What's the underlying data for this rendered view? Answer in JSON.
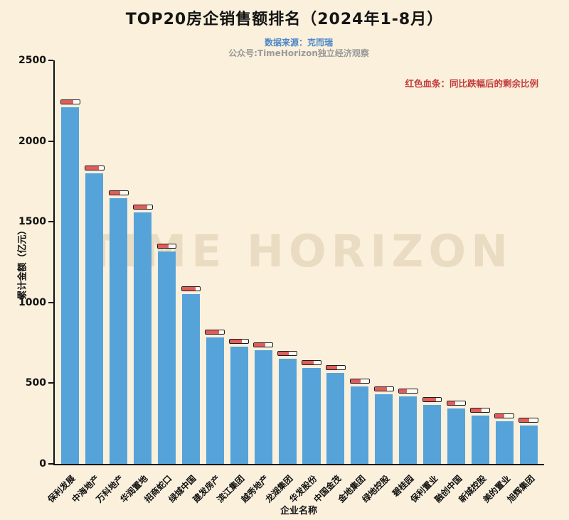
{
  "header": {
    "title": "TOP20房企销售额排名（2024年1-8月）",
    "source_line": "数据来源：克而瑞",
    "account_line": "公众号:TimeHorizon独立经济观察",
    "legend_note": "红色血条：同比跌幅后的剩余比例"
  },
  "watermark": "TIME HORIZON",
  "colors": {
    "background": "#faf0dc",
    "bar": "#55a3d9",
    "marker_red": "#e25c5c",
    "source_blue": "#4a86c8",
    "note_red": "#c23a3a"
  },
  "chart_data": {
    "type": "bar",
    "title": "TOP20房企销售额排名（2024年1-8月）",
    "xlabel": "企业名称",
    "ylabel": "累计金额（亿元）",
    "ylim": [
      0,
      2500
    ],
    "yticks": [
      0,
      500,
      1000,
      1500,
      2000,
      2500
    ],
    "grid": false,
    "legend_position": "none",
    "categories": [
      "保利发展",
      "中海地产",
      "万科地产",
      "华润置地",
      "招商蛇口",
      "绿城中国",
      "建发房产",
      "滨江集团",
      "越秀地产",
      "龙湖集团",
      "华发股份",
      "中国金茂",
      "金地集团",
      "绿地控股",
      "碧桂园",
      "保利置业",
      "融创中国",
      "新城控股",
      "美的置业",
      "旭辉集团"
    ],
    "values": [
      2210,
      1800,
      1645,
      1560,
      1315,
      1050,
      785,
      725,
      705,
      650,
      595,
      565,
      478,
      432,
      420,
      365,
      345,
      298,
      262,
      238
    ],
    "remain_ratio": [
      0.66,
      0.72,
      0.58,
      0.76,
      0.6,
      0.76,
      0.7,
      0.66,
      0.62,
      0.56,
      0.62,
      0.6,
      0.56,
      0.68,
      0.42,
      0.7,
      0.45,
      0.55,
      0.5,
      0.55
    ]
  }
}
